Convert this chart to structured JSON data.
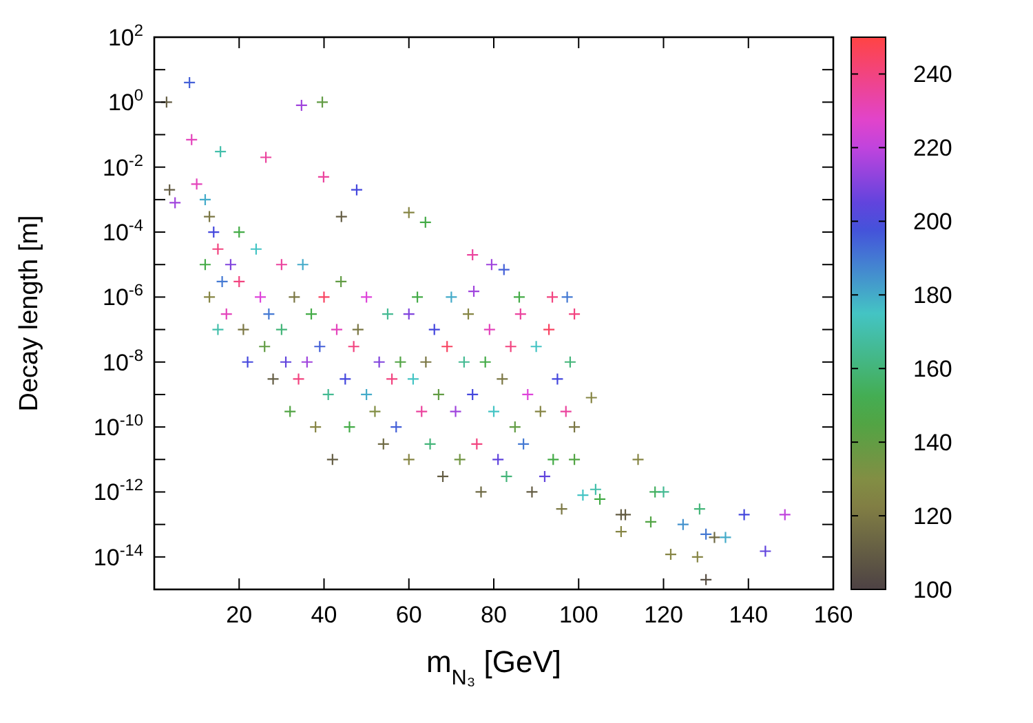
{
  "chart_data": {
    "type": "scatter",
    "xlabel": "m$_{N₃}$ [GeV]",
    "ylabel": "Decay length [m]",
    "log": "y",
    "marker": "cross",
    "xlim": [
      0,
      160
    ],
    "xticks": [
      20,
      40,
      60,
      80,
      100,
      120,
      140,
      160
    ],
    "ylim": [
      1e-15,
      100
    ],
    "yticks": [
      {
        "value": 100,
        "label": "10$^{2}$"
      },
      {
        "value": 10,
        "label": null
      },
      {
        "value": 1,
        "label": "10$^{0}$"
      },
      {
        "value": 0.1,
        "label": null
      },
      {
        "value": 0.01,
        "label": "10$^{-2}$"
      },
      {
        "value": 0.001,
        "label": null
      },
      {
        "value": 0.0001,
        "label": "10$^{-4}$"
      },
      {
        "value": 1e-05,
        "label": null
      },
      {
        "value": 1e-06,
        "label": "10$^{-6}$"
      },
      {
        "value": 1e-07,
        "label": null
      },
      {
        "value": 1e-08,
        "label": "10$^{-8}$"
      },
      {
        "value": 1e-09,
        "label": null
      },
      {
        "value": 1e-10,
        "label": "10$^{-10}$"
      },
      {
        "value": 1e-11,
        "label": null
      },
      {
        "value": 1e-12,
        "label": "10$^{-12}$"
      },
      {
        "value": 1e-13,
        "label": null
      },
      {
        "value": 1e-14,
        "label": "10$^{-14}$"
      }
    ],
    "clim": [
      100,
      250
    ],
    "cticks": [
      100,
      120,
      140,
      160,
      180,
      200,
      220,
      240
    ],
    "x": [
      8.3,
      2.9,
      34.7,
      39.6,
      8.8,
      15.6,
      26.3,
      39.9,
      47.7,
      44.1,
      60,
      63.9,
      3.6,
      4.9,
      75,
      79.5,
      82.4,
      75.3,
      93.8,
      97.3,
      99,
      86.3,
      103,
      114,
      101,
      104,
      105,
      110,
      111,
      110,
      117,
      118,
      120,
      124.6,
      121.7,
      128.5,
      130,
      132,
      134.6,
      139,
      148.6,
      144,
      128,
      130,
      10,
      12,
      13,
      14,
      15,
      12,
      16,
      13,
      17,
      15,
      18,
      20,
      20,
      21,
      22,
      24,
      25,
      26,
      27,
      28,
      30,
      30,
      31,
      32,
      33,
      34,
      35,
      36,
      37,
      38,
      39,
      40,
      41,
      42,
      43,
      44,
      45,
      46,
      47,
      48,
      50,
      50,
      52,
      53,
      54,
      55,
      56,
      57,
      58,
      60,
      60,
      61,
      62,
      63,
      64,
      65,
      66,
      67,
      68,
      69,
      70,
      71,
      72,
      73,
      74,
      75,
      76,
      77,
      78,
      79,
      80,
      81,
      82,
      83,
      84,
      85,
      86,
      87,
      88,
      89,
      90,
      91,
      92,
      93,
      94,
      95,
      96,
      97,
      98,
      99,
      99
    ],
    "values": [
      4,
      1,
      0.8,
      1,
      0.07,
      0.03,
      0.02,
      0.005,
      0.002,
      0.0003,
      0.0004,
      0.0002,
      0.002,
      0.0008,
      2e-05,
      1e-05,
      7e-06,
      1.5e-06,
      1e-06,
      1e-06,
      3e-07,
      3e-07,
      8e-10,
      1e-11,
      8e-13,
      1.2e-12,
      6e-13,
      2e-13,
      2e-13,
      6e-14,
      1.2e-13,
      1e-12,
      1e-12,
      1e-13,
      1.2e-14,
      3e-13,
      5e-14,
      4e-14,
      4e-14,
      2e-13,
      2e-13,
      1.5e-14,
      1e-14,
      2e-15,
      0.003,
      0.001,
      0.0003,
      0.0001,
      3e-05,
      1e-05,
      3e-06,
      1e-06,
      3e-07,
      1e-07,
      1e-05,
      0.0001,
      3e-06,
      1e-07,
      1e-08,
      3e-05,
      1e-06,
      3e-08,
      3e-07,
      3e-09,
      1e-05,
      1e-07,
      1e-08,
      3e-10,
      1e-06,
      3e-09,
      1e-05,
      1e-08,
      3e-07,
      1e-10,
      3e-08,
      1e-06,
      1e-09,
      1e-11,
      1e-07,
      3e-06,
      3e-09,
      1e-10,
      3e-08,
      1e-07,
      1e-09,
      1e-06,
      3e-10,
      1e-08,
      3e-11,
      3e-07,
      3e-09,
      1e-10,
      1e-08,
      3e-07,
      1e-11,
      3e-09,
      1e-06,
      3e-10,
      1e-08,
      3e-11,
      1e-07,
      1e-09,
      3e-12,
      3e-08,
      1e-06,
      3e-10,
      1e-11,
      1e-08,
      3e-07,
      1e-09,
      3e-11,
      1e-12,
      1e-08,
      1e-07,
      3e-10,
      1e-11,
      3e-09,
      3e-12,
      3e-08,
      1e-10,
      1e-06,
      3e-11,
      1e-09,
      1e-12,
      3e-08,
      3e-10,
      3e-12,
      1e-07,
      1e-11,
      3e-09,
      3e-13,
      3e-10,
      1e-08,
      1e-10,
      1e-11
    ],
    "cvalues": [
      195,
      110,
      215,
      140,
      230,
      170,
      235,
      235,
      200,
      110,
      125,
      150,
      110,
      215,
      235,
      215,
      195,
      215,
      240,
      190,
      240,
      235,
      125,
      125,
      175,
      170,
      150,
      110,
      110,
      125,
      145,
      155,
      165,
      185,
      125,
      160,
      190,
      115,
      180,
      200,
      220,
      205,
      125,
      105,
      230,
      180,
      120,
      200,
      240,
      150,
      190,
      125,
      230,
      170,
      210,
      150,
      240,
      120,
      200,
      175,
      225,
      140,
      190,
      110,
      235,
      160,
      205,
      145,
      120,
      240,
      180,
      215,
      150,
      125,
      195,
      245,
      165,
      110,
      230,
      140,
      200,
      150,
      240,
      120,
      180,
      225,
      130,
      210,
      115,
      165,
      240,
      195,
      145,
      210,
      125,
      175,
      150,
      235,
      120,
      160,
      200,
      140,
      110,
      245,
      180,
      215,
      135,
      165,
      125,
      200,
      240,
      115,
      150,
      230,
      175,
      205,
      120,
      160,
      240,
      140,
      150,
      190,
      225,
      110,
      175,
      125,
      205,
      245,
      150,
      200,
      120,
      235,
      160,
      120,
      145
    ]
  }
}
